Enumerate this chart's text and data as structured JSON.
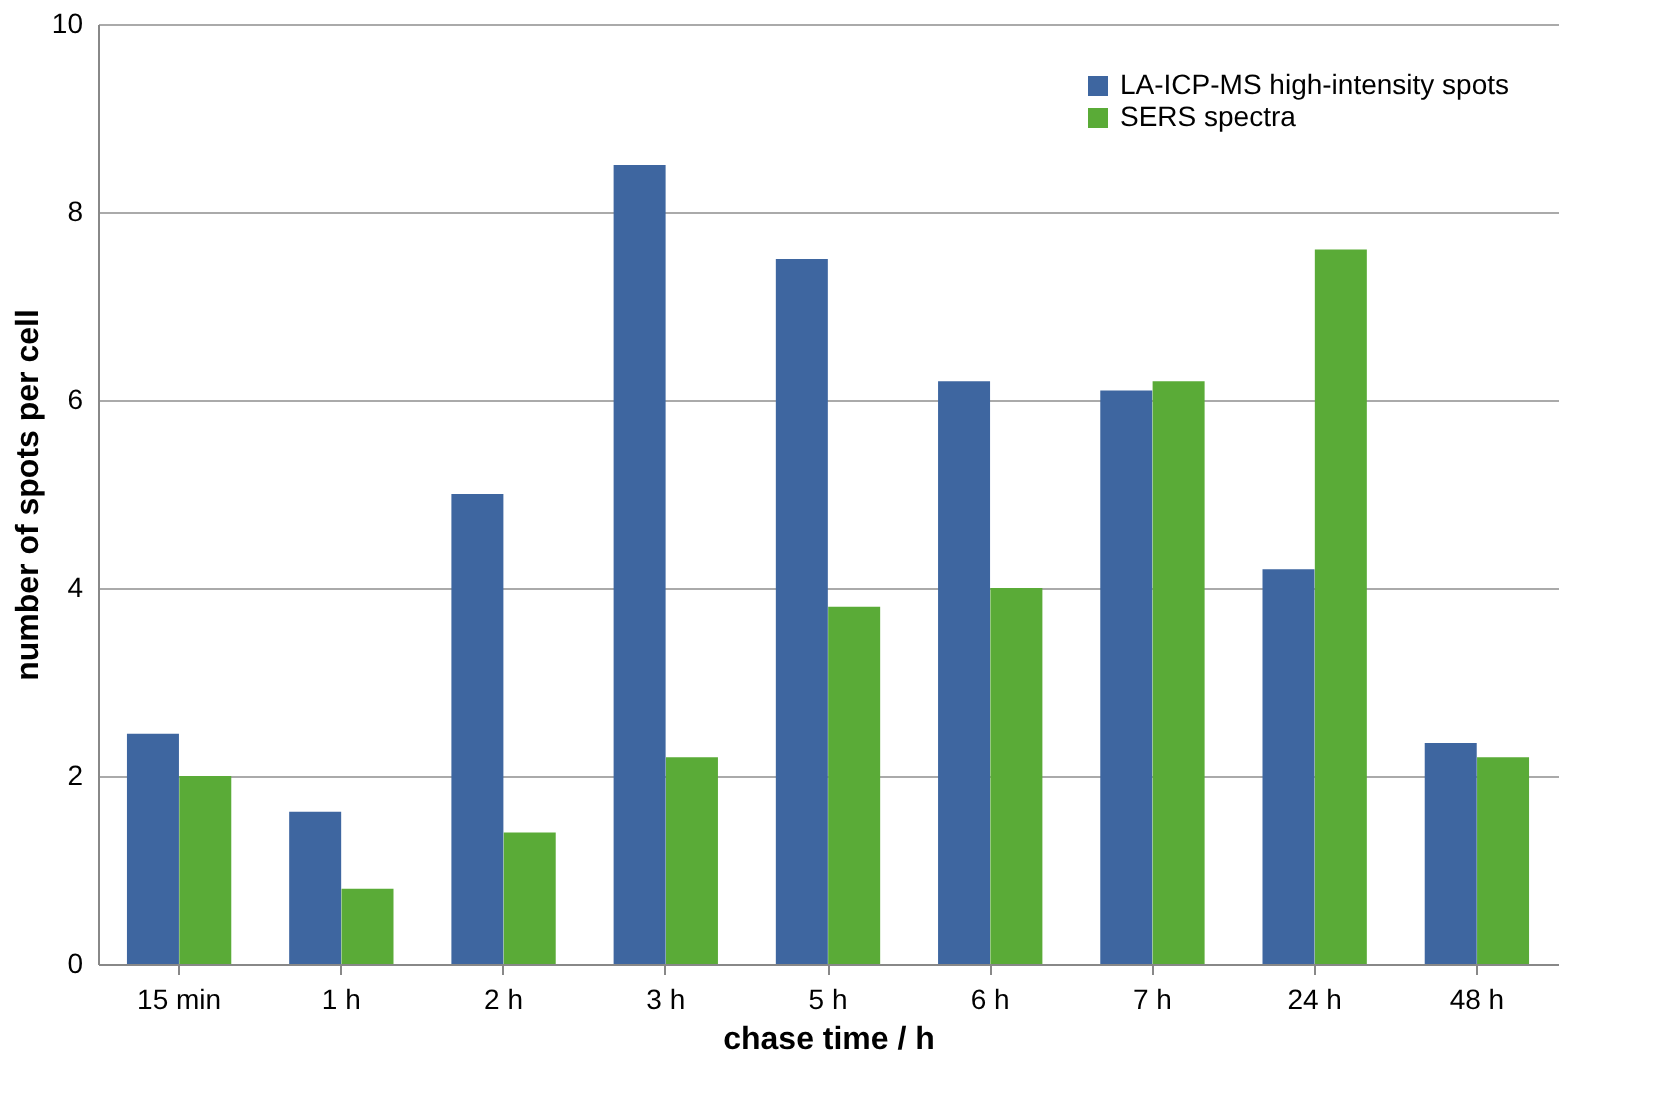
{
  "chart_data": {
    "type": "bar",
    "xlabel": "chase time / h",
    "ylabel": "number of spots per cell",
    "categories": [
      "15 min",
      "1 h",
      "2 h",
      "3 h",
      "5 h",
      "6 h",
      "7 h",
      "24 h",
      "48 h"
    ],
    "series": [
      {
        "name": "LA-ICP-MS high-intensity spots",
        "color": "#3e66a0",
        "values": [
          2.45,
          1.62,
          5.0,
          8.5,
          7.5,
          6.2,
          6.1,
          4.2,
          2.35
        ]
      },
      {
        "name": "SERS spectra",
        "color": "#5aab37",
        "values": [
          2.0,
          0.8,
          1.4,
          2.2,
          3.8,
          4.0,
          6.2,
          7.6,
          2.2
        ]
      }
    ],
    "ylim": [
      0,
      10
    ],
    "yticks": [
      0,
      2,
      4,
      6,
      8,
      10
    ],
    "grid": "y",
    "legend": "top right"
  }
}
